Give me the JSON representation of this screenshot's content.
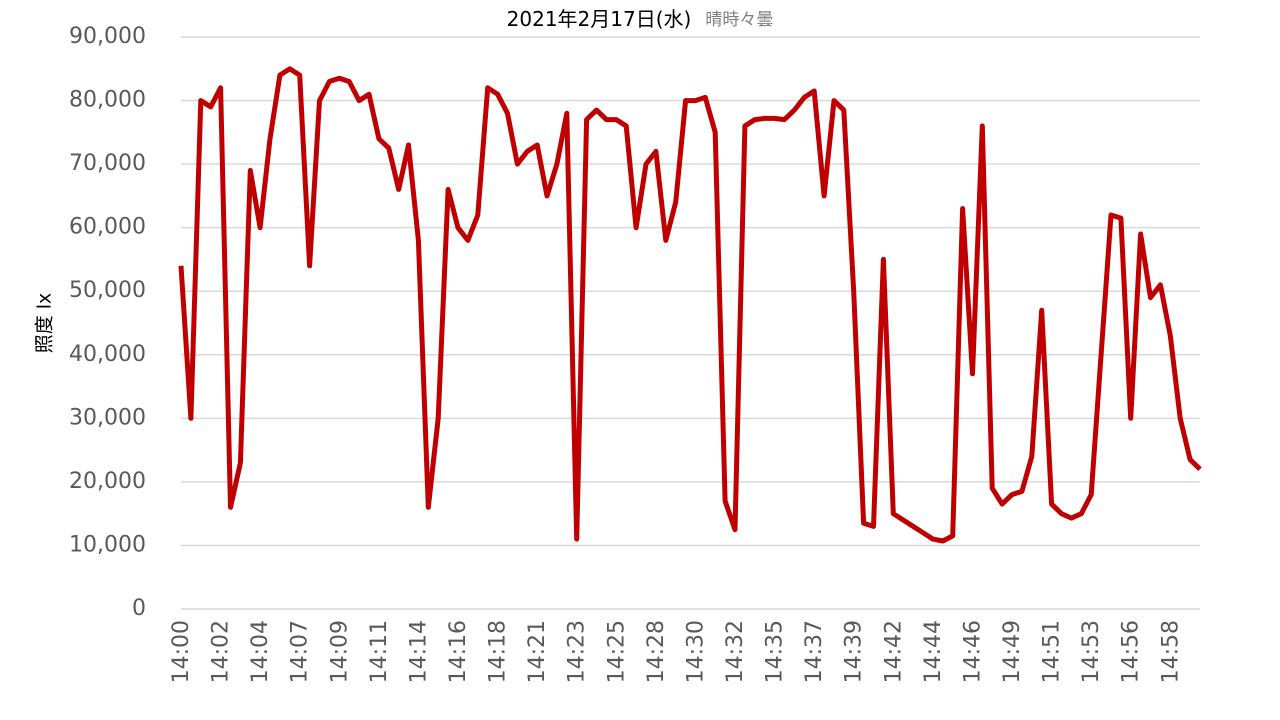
{
  "chart_data": {
    "type": "line",
    "title": "2021年2月17日(水)",
    "subtitle": "晴時々曇",
    "y_label": "照度 lx",
    "color": "#c00000",
    "grid": true,
    "ylim": [
      0,
      90000
    ],
    "yticks": [
      0,
      {
        "value": 10000,
        "label": "10,000"
      },
      {
        "value": 20000,
        "label": "20,000"
      },
      {
        "value": 30000,
        "label": "30,000"
      },
      {
        "value": 40000,
        "label": "40,000"
      },
      {
        "value": 50000,
        "label": "50,000"
      },
      {
        "value": 60000,
        "label": "60,000"
      },
      {
        "value": 70000,
        "label": "70,000"
      },
      {
        "value": 80000,
        "label": "80,000"
      },
      {
        "value": 90000,
        "label": "90,000"
      }
    ],
    "categories": [
      "14:00",
      null,
      null,
      null,
      "14:02",
      null,
      null,
      null,
      "14:04",
      null,
      null,
      null,
      "14:07",
      null,
      null,
      null,
      "14:09",
      null,
      null,
      null,
      "14:11",
      null,
      null,
      null,
      "14:14",
      null,
      null,
      null,
      "14:16",
      null,
      null,
      null,
      "14:18",
      null,
      null,
      null,
      "14:21",
      null,
      null,
      null,
      "14:23",
      null,
      null,
      null,
      "14:25",
      null,
      null,
      null,
      "14:28",
      null,
      null,
      null,
      "14:30",
      null,
      null,
      null,
      "14:32",
      null,
      null,
      null,
      "14:35",
      null,
      null,
      null,
      "14:37",
      null,
      null,
      null,
      "14:39",
      null,
      null,
      null,
      "14:42",
      null,
      null,
      null,
      "14:44",
      null,
      null,
      null,
      "14:46",
      null,
      null,
      null,
      "14:49",
      null,
      null,
      null,
      "14:51",
      null,
      null,
      null,
      "14:53",
      null,
      null,
      null,
      "14:56",
      null,
      null,
      null,
      "14:58",
      null,
      null,
      null
    ],
    "values": [
      54000,
      30000,
      80000,
      79000,
      82000,
      16000,
      23000,
      69000,
      60000,
      74000,
      84000,
      85000,
      84000,
      54000,
      80000,
      83000,
      83500,
      83000,
      80000,
      81000,
      74000,
      72500,
      66000,
      73000,
      58000,
      16000,
      30000,
      66000,
      60000,
      58000,
      62000,
      82000,
      81000,
      78000,
      70000,
      72000,
      73000,
      65000,
      70000,
      78000,
      11000,
      77000,
      78500,
      77000,
      77000,
      76000,
      60000,
      70000,
      72000,
      58000,
      64000,
      80000,
      80000,
      80500,
      75000,
      17000,
      12500,
      76000,
      77000,
      77200,
      77200,
      77000,
      78500,
      80500,
      81500,
      65000,
      80000,
      78500,
      50000,
      13500,
      13000,
      55000,
      15000,
      14000,
      13000,
      12000,
      11000,
      10700,
      11500,
      63000,
      37000,
      76000,
      19000,
      16500,
      18000,
      18500,
      24000,
      47000,
      16500,
      15000,
      14300,
      15000,
      18000,
      40000,
      62000,
      61500,
      30000,
      59000,
      49000,
      51000,
      43000,
      30000,
      23500,
      22000
    ]
  }
}
